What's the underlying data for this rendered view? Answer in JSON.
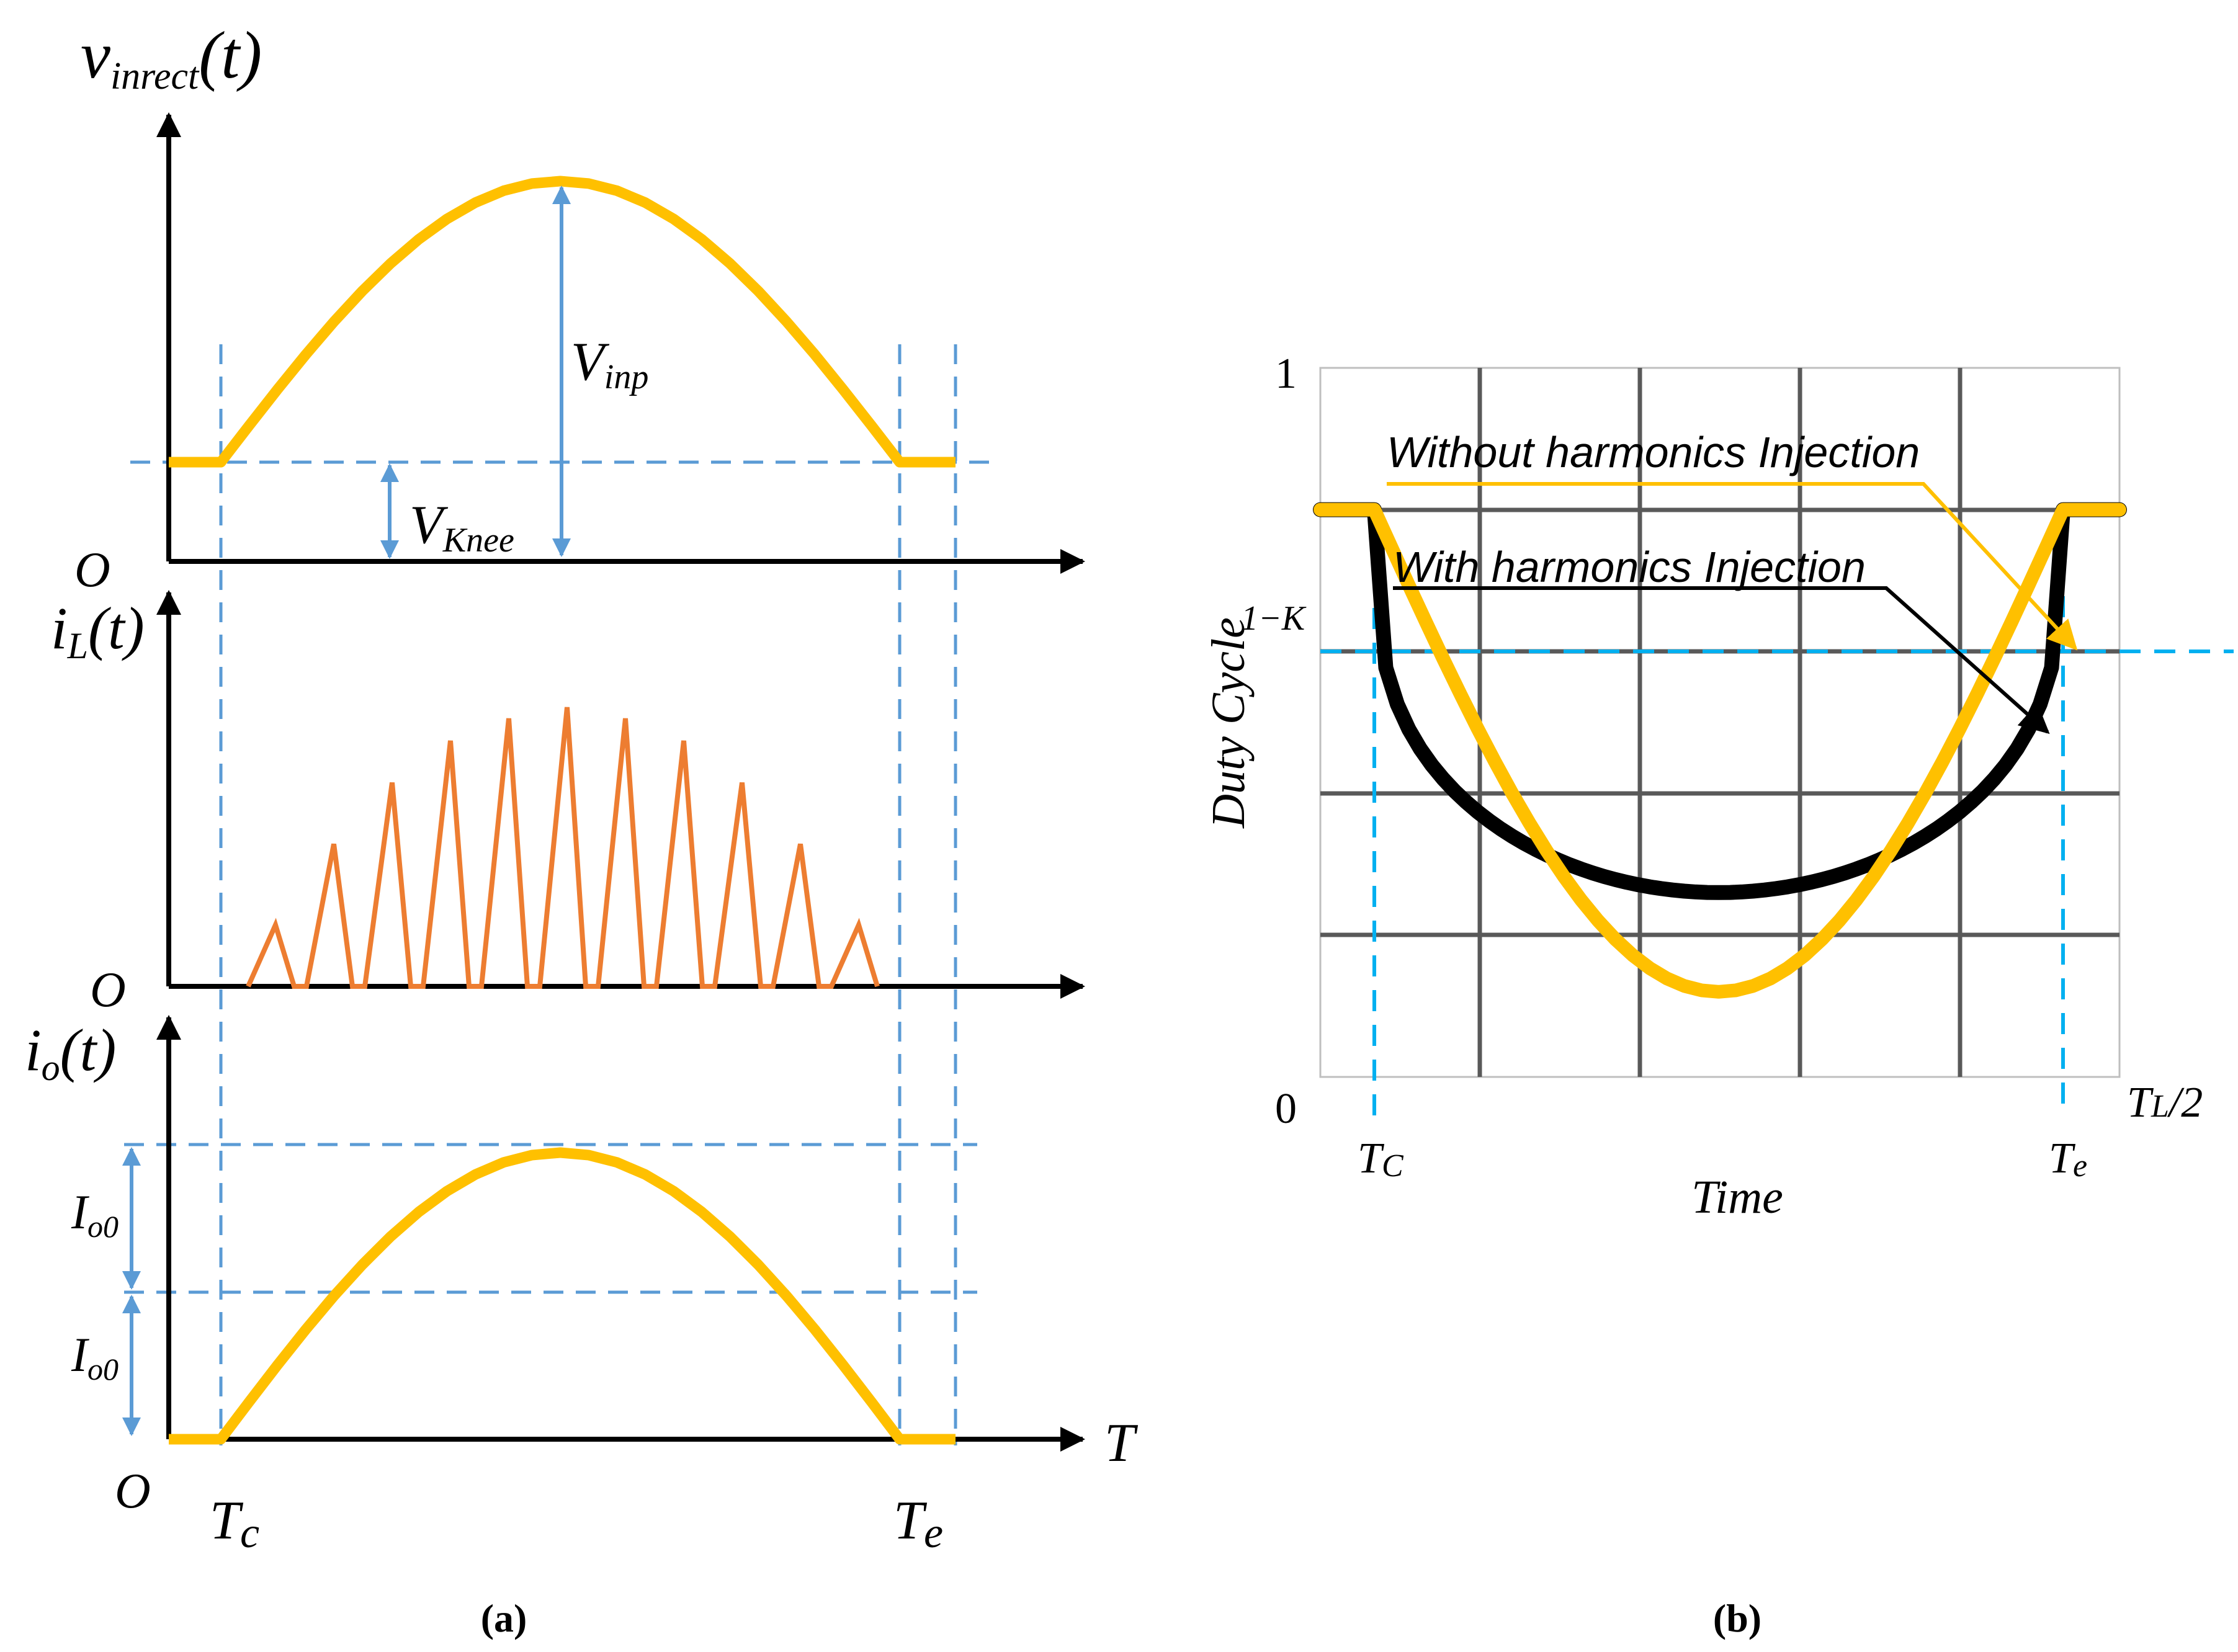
{
  "colors": {
    "curve": "#FFC000",
    "spikes": "#ED7D31",
    "guide": "#5B9BD5",
    "guide_b": "#00B0F0",
    "axis": "#000000",
    "grid": "#595959",
    "black_curve": "#000000"
  },
  "panel_a": {
    "caption": "(a)",
    "v_label": {
      "main": "v",
      "sub": "inrect",
      "tail": "(t)"
    },
    "il_label": {
      "main": "i",
      "sub": "L",
      "tail": "(t)"
    },
    "io_label": {
      "main": "i",
      "sub": "o",
      "tail": "(t)"
    },
    "origin": "O",
    "t_axis": "T",
    "tc": {
      "main": "T",
      "sub": "c"
    },
    "te": {
      "main": "T",
      "sub": "e"
    },
    "vinp": {
      "main": "V",
      "sub": "inp"
    },
    "vknee": {
      "main": "V",
      "sub": "Knee"
    },
    "io0_upper": {
      "main": "I",
      "sub": "o0"
    },
    "io0_lower": {
      "main": "I",
      "sub": "o0"
    }
  },
  "panel_b": {
    "caption": "(b)",
    "y_top": "1",
    "y_zero": "0",
    "one_minus_k": "1−K",
    "ylabel": "Duty Cycle",
    "xlabel": "Time",
    "tc": {
      "main": "T",
      "sub": "C"
    },
    "te": {
      "main": "T",
      "sub": "e"
    },
    "tl2": {
      "main": "T",
      "sub": "L",
      "tail": "/2"
    },
    "legend_without": "Without harmonics Injection",
    "legend_with": "With harmonics Injection"
  },
  "chart_data": [
    {
      "type": "line",
      "title": "v_inrect(t)",
      "xlabel": "T",
      "ylabel": "v_inrect(t)",
      "x": [
        0,
        0.1,
        0.2,
        0.3,
        0.4,
        0.5,
        0.6,
        0.7,
        0.8,
        0.9,
        1.0
      ],
      "series": [
        {
          "name": "v_inrect",
          "values": [
            0,
            0.309,
            0.588,
            0.809,
            0.951,
            1.0,
            0.951,
            0.809,
            0.588,
            0.309,
            0
          ]
        }
      ],
      "annotations": [
        "V_inp",
        "V_Knee",
        "T_c",
        "T_e"
      ]
    },
    {
      "type": "line",
      "title": "i_L(t)",
      "xlabel": "T",
      "ylabel": "i_L(t)",
      "series": [
        {
          "name": "triangular peaks",
          "values": [
            0.22,
            0.51,
            0.73,
            0.88,
            0.96,
            1.0,
            0.96,
            0.88,
            0.73,
            0.51,
            0.22
          ]
        }
      ]
    },
    {
      "type": "line",
      "title": "i_o(t)",
      "xlabel": "T",
      "ylabel": "i_o(t)",
      "x": [
        0,
        0.1,
        0.2,
        0.3,
        0.4,
        0.5,
        0.6,
        0.7,
        0.8,
        0.9,
        1.0
      ],
      "series": [
        {
          "name": "i_o",
          "values": [
            0,
            0.309,
            0.588,
            0.809,
            0.951,
            1.0,
            0.951,
            0.809,
            0.588,
            0.309,
            0
          ]
        }
      ],
      "annotations": [
        "I_o0",
        "I_o0"
      ]
    },
    {
      "type": "line",
      "title": "Duty Cycle",
      "xlabel": "Time",
      "ylabel": "Duty Cycle",
      "ylim": [
        0,
        1
      ],
      "xlim": [
        0,
        1
      ],
      "x": [
        0.07,
        0.15,
        0.25,
        0.35,
        0.45,
        0.5,
        0.55,
        0.65,
        0.75,
        0.85,
        0.93
      ],
      "series": [
        {
          "name": "Without harmonics Injection",
          "values": [
            0.8,
            0.6,
            0.4,
            0.22,
            0.13,
            0.12,
            0.13,
            0.22,
            0.4,
            0.6,
            0.8
          ]
        },
        {
          "name": "With harmonics Injection",
          "values": [
            0.8,
            0.42,
            0.32,
            0.28,
            0.26,
            0.26,
            0.26,
            0.28,
            0.32,
            0.42,
            0.8
          ]
        }
      ],
      "reference_line": {
        "label": "1−K",
        "value": 0.8
      },
      "x_ticks": [
        "0",
        "T_C",
        "T_e",
        "T_L/2"
      ]
    }
  ]
}
